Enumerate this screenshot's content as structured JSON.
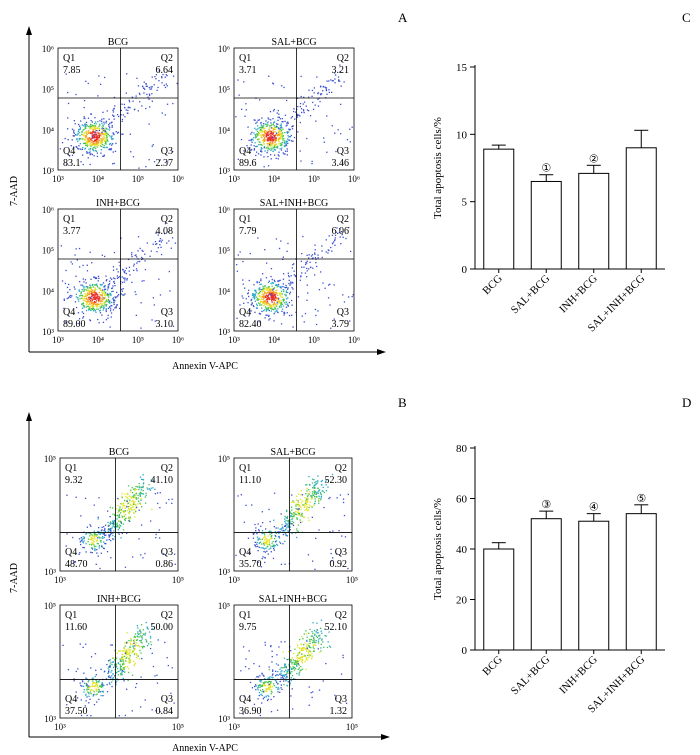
{
  "panel_labels": {
    "a": "A",
    "b": "B",
    "c": "C",
    "d": "D"
  },
  "axis_labels": {
    "y": "7-AAD",
    "x": "Annexin V-APC"
  },
  "flow_ticks": {
    "a": [
      "10³",
      "10⁴",
      "10⁵",
      "10⁶"
    ],
    "b": [
      "10³",
      "10⁵"
    ]
  },
  "chart_data": [
    {
      "type": "scatter",
      "panel": "A",
      "subtype": "flow-cytometry-quadrant",
      "xlabel": "Annexin V-APC",
      "ylabel": "7-AAD",
      "scale": "log",
      "plots": [
        {
          "title": "BCG",
          "quadrants": {
            "Q1": "7.85",
            "Q2": "6.64",
            "Q3": "2.37",
            "Q4": "83.1"
          }
        },
        {
          "title": "SAL+BCG",
          "quadrants": {
            "Q1": "3.71",
            "Q2": "3.21",
            "Q3": "3.46",
            "Q4": "89.6"
          }
        },
        {
          "title": "INH+BCG",
          "quadrants": {
            "Q1": "3.77",
            "Q2": "4.08",
            "Q3": "3.10",
            "Q4": "89.00"
          }
        },
        {
          "title": "SAL+INH+BCG",
          "quadrants": {
            "Q1": "7.79",
            "Q2": "6.06",
            "Q3": "3.79",
            "Q4": "82.40"
          }
        }
      ]
    },
    {
      "type": "scatter",
      "panel": "B",
      "subtype": "flow-cytometry-quadrant",
      "xlabel": "Annexin V-APC",
      "ylabel": "7-AAD",
      "scale": "log",
      "plots": [
        {
          "title": "BCG",
          "quadrants": {
            "Q1": "9.32",
            "Q2": "41.10",
            "Q3": "0.86",
            "Q4": "48.70"
          }
        },
        {
          "title": "SAL+BCG",
          "quadrants": {
            "Q1": "11.10",
            "Q2": "52.30",
            "Q3": "0.92",
            "Q4": "35.70"
          }
        },
        {
          "title": "INH+BCG",
          "quadrants": {
            "Q1": "11.60",
            "Q2": "50.00",
            "Q3": "0.84",
            "Q4": "37.50"
          }
        },
        {
          "title": "SAL+INH+BCG",
          "quadrants": {
            "Q1": "9.75",
            "Q2": "52.10",
            "Q3": "1.32",
            "Q4": "36.90"
          }
        }
      ]
    },
    {
      "type": "bar",
      "panel": "C",
      "ylabel": "Total apoptosis cells/%",
      "categories": [
        "BCG",
        "SAL+BCG",
        "INH+BCG",
        "SAL+INH+BCG"
      ],
      "values": [
        8.9,
        6.5,
        7.1,
        9.0
      ],
      "errors": [
        0.3,
        0.5,
        0.6,
        1.3
      ],
      "markers": [
        "",
        "①",
        "②",
        ""
      ],
      "ylim": [
        0,
        15
      ],
      "yticks": [
        0,
        5,
        10,
        15
      ]
    },
    {
      "type": "bar",
      "panel": "D",
      "ylabel": "Total apoptosis cells/%",
      "categories": [
        "BCG",
        "SAL+BCG",
        "INH+BCG",
        "SAL+INH+BCG"
      ],
      "values": [
        40,
        52,
        51,
        54
      ],
      "errors": [
        2.5,
        3,
        3,
        3.5
      ],
      "markers": [
        "",
        "③",
        "④",
        "⑤"
      ],
      "ylim": [
        0,
        80
      ],
      "yticks": [
        0,
        20,
        40,
        60,
        80
      ]
    }
  ]
}
